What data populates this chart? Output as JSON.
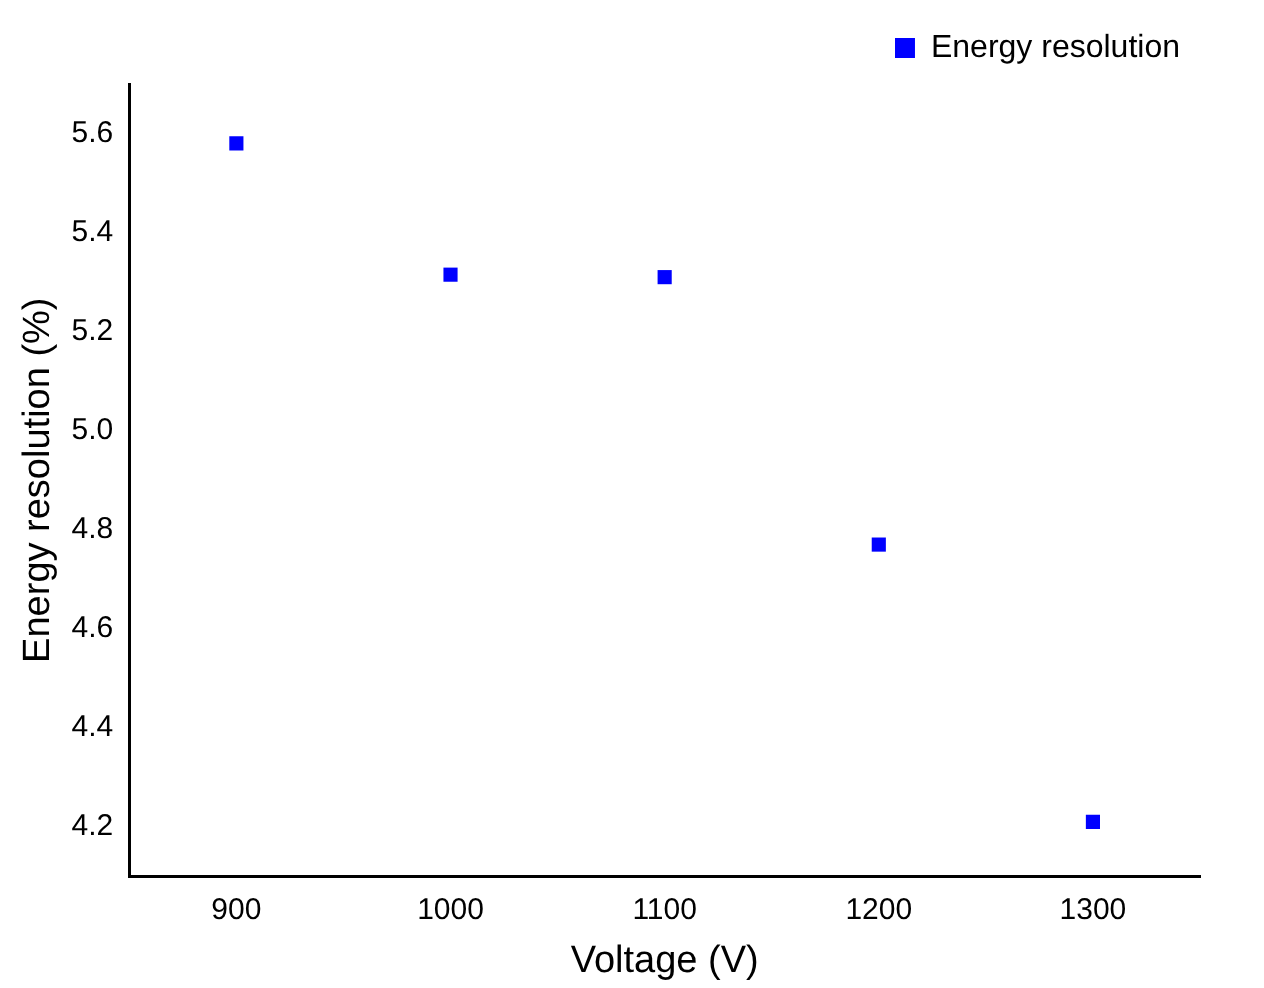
{
  "chart_data": {
    "type": "scatter",
    "xlabel": "Voltage (V)",
    "ylabel": "Energy resolution (%)",
    "x": [
      900,
      1000,
      1100,
      1200,
      1300
    ],
    "series": [
      {
        "name": "Energy resolution",
        "color": "#0000ff",
        "values": [
          5.58,
          5.315,
          5.31,
          4.77,
          4.21
        ]
      }
    ],
    "xlim": [
      850,
      1350
    ],
    "xticks": [
      900,
      1000,
      1100,
      1200,
      1300
    ],
    "ylim": [
      4.1,
      5.7
    ],
    "yticks": [
      4.2,
      4.4,
      4.6,
      4.8,
      {
        "value": 5,
        "label": "5.0"
      },
      5.2,
      5.4,
      5.6
    ],
    "marker": "square",
    "grid": false,
    "legend": "top right"
  }
}
